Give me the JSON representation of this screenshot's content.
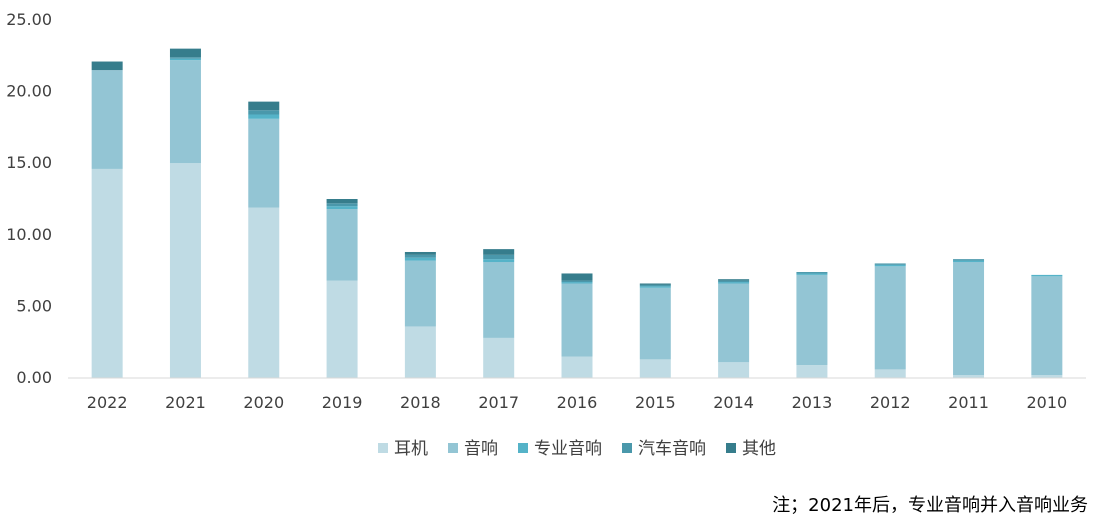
{
  "chart_data": {
    "type": "bar",
    "stacked": true,
    "categories": [
      "2022",
      "2021",
      "2020",
      "2019",
      "2018",
      "2017",
      "2016",
      "2015",
      "2014",
      "2013",
      "2012",
      "2011",
      "2010"
    ],
    "series": [
      {
        "name": "耳机",
        "color": "#bfdbe4",
        "values": [
          14.6,
          15.0,
          11.9,
          6.8,
          3.6,
          2.8,
          1.5,
          1.3,
          1.1,
          0.9,
          0.6,
          0.2,
          0.2
        ]
      },
      {
        "name": "音响",
        "color": "#93c5d4",
        "values": [
          6.9,
          7.2,
          6.2,
          5.0,
          4.6,
          5.3,
          5.1,
          5.0,
          5.5,
          6.3,
          7.2,
          7.9,
          6.9
        ]
      },
      {
        "name": "专业音响",
        "color": "#55b3c8",
        "values": [
          0.0,
          0.1,
          0.3,
          0.2,
          0.2,
          0.2,
          0.1,
          0.1,
          0.1,
          0.1,
          0.1,
          0.1,
          0.1
        ]
      },
      {
        "name": "汽车音响",
        "color": "#4a98ab",
        "values": [
          0.0,
          0.1,
          0.3,
          0.2,
          0.2,
          0.3,
          0.1,
          0.1,
          0.1,
          0.1,
          0.1,
          0.1,
          0.0
        ]
      },
      {
        "name": "其他",
        "color": "#367d8c",
        "values": [
          0.6,
          0.6,
          0.6,
          0.3,
          0.2,
          0.4,
          0.5,
          0.1,
          0.1,
          0.0,
          0.0,
          0.0,
          0.0
        ]
      }
    ],
    "ylim": [
      0,
      25
    ],
    "yticks": [
      "0.00",
      "5.00",
      "10.00",
      "15.00",
      "20.00",
      "25.00"
    ],
    "grid": false,
    "legend_position": "bottom"
  },
  "note": "注；2021年后，专业音响并入音响业务"
}
